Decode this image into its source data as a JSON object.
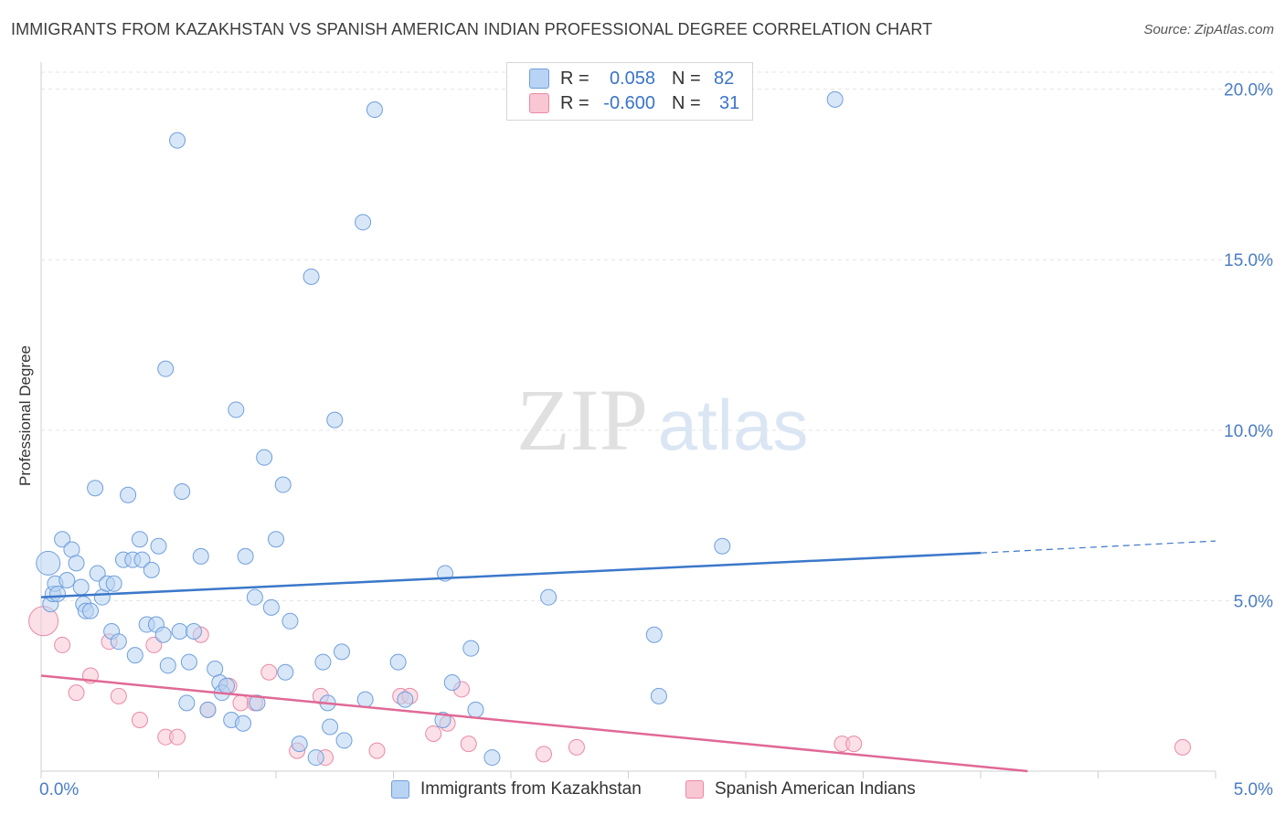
{
  "header": {
    "title": "IMMIGRANTS FROM KAZAKHSTAN VS SPANISH AMERICAN INDIAN PROFESSIONAL DEGREE CORRELATION CHART",
    "source": "Source: ZipAtlas.com"
  },
  "watermark": {
    "zip": "ZIP",
    "atlas": "atlas"
  },
  "legend": {
    "blue": {
      "r_label": "R =",
      "r_value": "0.058",
      "n_label": "N =",
      "n_value": "82"
    },
    "pink": {
      "r_label": "R =",
      "r_value": "-0.600",
      "n_label": "N =",
      "n_value": "31"
    }
  },
  "colors": {
    "blue_fill": "#b8d3f3",
    "blue_stroke": "#6f9fdc",
    "blue_line": "#3b78c9",
    "pink_fill": "#f9c6d4",
    "pink_stroke": "#e88aa6",
    "pink_line": "#e06996",
    "tick_label": "#4a7dc4",
    "grid": "#e3e3e3"
  },
  "chart_data": {
    "type": "scatter",
    "title": "IMMIGRANTS FROM KAZAKHSTAN VS SPANISH AMERICAN INDIAN PROFESSIONAL DEGREE CORRELATION CHART",
    "xlabel": "",
    "ylabel": "Professional Degree",
    "xlim": [
      0,
      5
    ],
    "ylim": [
      0,
      20.5
    ],
    "x_tick_labels": [
      {
        "value": 0,
        "label": "0.0%"
      },
      {
        "value": 5,
        "label": "5.0%"
      }
    ],
    "y_tick_labels": [
      {
        "value": 5,
        "label": "5.0%"
      },
      {
        "value": 10,
        "label": "10.0%"
      },
      {
        "value": 15,
        "label": "15.0%"
      },
      {
        "value": 20,
        "label": "20.0%"
      }
    ],
    "series": [
      {
        "name": "Immigrants from Kazakhstan",
        "color": "blue",
        "r": 0.058,
        "n": 82,
        "trend": {
          "x0": 0,
          "y0": 5.1,
          "x1": 4,
          "y1": 6.4,
          "dash_x1": 5,
          "dash_y1": 6.75
        },
        "points": [
          [
            0.03,
            6.1
          ],
          [
            0.04,
            4.9
          ],
          [
            0.05,
            5.2
          ],
          [
            0.06,
            5.5
          ],
          [
            0.07,
            5.2
          ],
          [
            0.09,
            6.8
          ],
          [
            0.11,
            5.6
          ],
          [
            0.13,
            6.5
          ],
          [
            0.15,
            6.1
          ],
          [
            0.17,
            5.4
          ],
          [
            0.18,
            4.9
          ],
          [
            0.19,
            4.7
          ],
          [
            0.21,
            4.7
          ],
          [
            0.23,
            8.3
          ],
          [
            0.24,
            5.8
          ],
          [
            0.26,
            5.1
          ],
          [
            0.28,
            5.5
          ],
          [
            0.3,
            4.1
          ],
          [
            0.31,
            5.5
          ],
          [
            0.33,
            3.8
          ],
          [
            0.35,
            6.2
          ],
          [
            0.37,
            8.1
          ],
          [
            0.39,
            6.2
          ],
          [
            0.4,
            3.4
          ],
          [
            0.42,
            6.8
          ],
          [
            0.43,
            6.2
          ],
          [
            0.45,
            4.3
          ],
          [
            0.47,
            5.9
          ],
          [
            0.49,
            4.3
          ],
          [
            0.5,
            6.6
          ],
          [
            0.52,
            4.0
          ],
          [
            0.53,
            11.8
          ],
          [
            0.54,
            3.1
          ],
          [
            0.58,
            18.5
          ],
          [
            0.59,
            4.1
          ],
          [
            0.6,
            8.2
          ],
          [
            0.62,
            2.0
          ],
          [
            0.63,
            3.2
          ],
          [
            0.65,
            4.1
          ],
          [
            0.68,
            6.3
          ],
          [
            0.71,
            1.8
          ],
          [
            0.74,
            3.0
          ],
          [
            0.76,
            2.6
          ],
          [
            0.77,
            2.3
          ],
          [
            0.79,
            2.5
          ],
          [
            0.81,
            1.5
          ],
          [
            0.83,
            10.6
          ],
          [
            0.86,
            1.4
          ],
          [
            0.87,
            6.3
          ],
          [
            0.91,
            5.1
          ],
          [
            0.92,
            2.0
          ],
          [
            0.95,
            9.2
          ],
          [
            0.98,
            4.8
          ],
          [
            1.0,
            6.8
          ],
          [
            1.03,
            8.4
          ],
          [
            1.04,
            2.9
          ],
          [
            1.06,
            4.4
          ],
          [
            1.1,
            0.8
          ],
          [
            1.15,
            14.5
          ],
          [
            1.17,
            0.4
          ],
          [
            1.2,
            3.2
          ],
          [
            1.22,
            2.0
          ],
          [
            1.23,
            1.3
          ],
          [
            1.25,
            10.3
          ],
          [
            1.28,
            3.5
          ],
          [
            1.29,
            0.9
          ],
          [
            1.37,
            16.1
          ],
          [
            1.38,
            2.1
          ],
          [
            1.42,
            19.4
          ],
          [
            1.52,
            3.2
          ],
          [
            1.55,
            2.1
          ],
          [
            1.71,
            1.5
          ],
          [
            1.72,
            5.8
          ],
          [
            1.75,
            2.6
          ],
          [
            1.83,
            3.6
          ],
          [
            1.85,
            1.8
          ],
          [
            1.92,
            0.4
          ],
          [
            2.16,
            5.1
          ],
          [
            2.61,
            4.0
          ],
          [
            2.63,
            2.2
          ],
          [
            2.9,
            6.6
          ],
          [
            3.38,
            19.7
          ]
        ]
      },
      {
        "name": "Spanish American Indians",
        "color": "pink",
        "r": -0.6,
        "n": 31,
        "trend": {
          "x0": 0,
          "y0": 2.8,
          "x1": 4.2,
          "y1": 0
        },
        "points": [
          [
            0.01,
            4.4
          ],
          [
            0.09,
            3.7
          ],
          [
            0.15,
            2.3
          ],
          [
            0.21,
            2.8
          ],
          [
            0.29,
            3.8
          ],
          [
            0.33,
            2.2
          ],
          [
            0.42,
            1.5
          ],
          [
            0.48,
            3.7
          ],
          [
            0.53,
            1.0
          ],
          [
            0.58,
            1.0
          ],
          [
            0.68,
            4.0
          ],
          [
            0.71,
            1.8
          ],
          [
            0.8,
            2.5
          ],
          [
            0.85,
            2.0
          ],
          [
            0.91,
            2.0
          ],
          [
            0.97,
            2.9
          ],
          [
            1.09,
            0.6
          ],
          [
            1.19,
            2.2
          ],
          [
            1.21,
            0.4
          ],
          [
            1.43,
            0.6
          ],
          [
            1.53,
            2.2
          ],
          [
            1.57,
            2.2
          ],
          [
            1.67,
            1.1
          ],
          [
            1.73,
            1.4
          ],
          [
            1.79,
            2.4
          ],
          [
            1.82,
            0.8
          ],
          [
            2.14,
            0.5
          ],
          [
            2.28,
            0.7
          ],
          [
            3.41,
            0.8
          ],
          [
            3.46,
            0.8
          ],
          [
            4.86,
            0.7
          ]
        ]
      }
    ]
  }
}
